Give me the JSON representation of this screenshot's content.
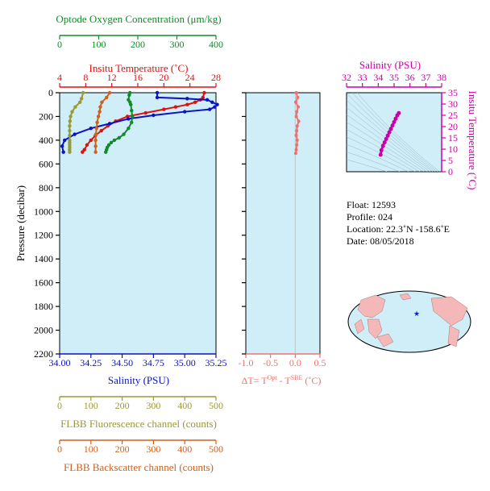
{
  "colors": {
    "oxygen": "#118a2a",
    "temperature": "#e01010",
    "salinity": "#0a12c8",
    "fluorescence": "#9a9a34",
    "backscatter": "#d0601c",
    "delta": "#f07070",
    "ts": "#cc00aa",
    "plot_bg": "#cfeef8",
    "axis": "#000000"
  },
  "axes": {
    "oxygen": {
      "title": "Optode Oxygen Concentration (μm/kg)",
      "ticks": [
        "0",
        "100",
        "200",
        "300",
        "400"
      ],
      "range": [
        0,
        400
      ]
    },
    "temperature": {
      "title": "Insitu Temperature (˚C)",
      "ticks": [
        "4",
        "8",
        "12",
        "16",
        "20",
        "24",
        "28"
      ],
      "range": [
        4,
        28
      ]
    },
    "pressure": {
      "title": "Pressure (decibar)",
      "ticks": [
        "0",
        "200",
        "400",
        "600",
        "800",
        "1000",
        "1200",
        "1400",
        "1600",
        "1800",
        "2000",
        "2200"
      ],
      "range": [
        0,
        2200
      ]
    },
    "salinity": {
      "title": "Salinity (PSU)",
      "ticks": [
        "34.00",
        "34.25",
        "34.50",
        "34.75",
        "35.00",
        "35.25"
      ],
      "range": [
        34.0,
        35.25
      ]
    },
    "delta_t": {
      "title_prefix": "ΔT= T",
      "sup1": "Opt",
      "mid": " - T",
      "sup2": "SBE",
      "suffix": " (˚C)",
      "ticks": [
        "-1.0",
        "-0.5",
        "0.0",
        "0.5"
      ],
      "range": [
        -1.0,
        0.5
      ]
    },
    "fluorescence": {
      "title": "FLBB Fluorescence channel (counts)",
      "ticks": [
        "0",
        "100",
        "200",
        "300",
        "400",
        "500"
      ],
      "range": [
        0,
        500
      ]
    },
    "backscatter": {
      "title": "FLBB Backscatter channel (counts)",
      "ticks": [
        "0",
        "100",
        "200",
        "300",
        "400",
        "500"
      ],
      "range": [
        0,
        500
      ]
    },
    "ts_salinity": {
      "title": "Salinity (PSU)",
      "ticks": [
        "32",
        "33",
        "34",
        "35",
        "36",
        "37",
        "38"
      ],
      "range": [
        32,
        38
      ]
    },
    "ts_temperature": {
      "title": "Insitu Temperature (˚C)",
      "ticks": [
        "0",
        "5",
        "10",
        "15",
        "20",
        "25",
        "30",
        "35"
      ],
      "range": [
        0,
        35
      ]
    }
  },
  "info": {
    "float": "Float:  12593",
    "profile": "Profile:  024",
    "location": "Location:  22.3˚N  -158.6˚E",
    "date": "Date:  08/05/2018"
  },
  "chart_data": [
    {
      "type": "line",
      "name": "profile",
      "y_axis": "Pressure (decibar)",
      "series": [
        {
          "name": "Insitu Temperature",
          "axis": "temperature",
          "x": [
            26.2,
            26.0,
            25.6,
            24.8,
            23.6,
            21.8,
            20.0,
            17.2,
            14.4,
            12.6,
            11.4,
            10.4,
            9.5,
            8.8,
            8.2,
            7.8,
            7.5
          ],
          "pressure": [
            0,
            40,
            60,
            80,
            100,
            120,
            140,
            170,
            200,
            240,
            280,
            320,
            360,
            400,
            440,
            480,
            500
          ]
        },
        {
          "name": "Salinity",
          "axis": "salinity",
          "x": [
            34.78,
            34.78,
            35.02,
            35.18,
            35.22,
            35.26,
            35.24,
            35.2,
            35.0,
            34.75,
            34.55,
            34.4,
            34.25,
            34.12,
            34.04,
            34.02,
            34.03
          ],
          "pressure": [
            0,
            40,
            50,
            60,
            80,
            100,
            120,
            140,
            160,
            190,
            220,
            260,
            300,
            350,
            400,
            450,
            500
          ]
        },
        {
          "name": "Optode Oxygen Concentration",
          "axis": "oxygen",
          "x": [
            180,
            178,
            176,
            180,
            182,
            184,
            186,
            184,
            176,
            164,
            152,
            140,
            132,
            126,
            122,
            120,
            118
          ],
          "pressure": [
            0,
            20,
            60,
            80,
            100,
            150,
            200,
            250,
            300,
            350,
            380,
            400,
            420,
            440,
            460,
            480,
            500
          ]
        },
        {
          "name": "FLBB Fluorescence channel",
          "axis": "fluorescence",
          "x": [
            75,
            70,
            65,
            50,
            40,
            35,
            33,
            32,
            32,
            32,
            32,
            32,
            32,
            32,
            32,
            32
          ],
          "pressure": [
            0,
            50,
            80,
            120,
            160,
            200,
            240,
            280,
            320,
            360,
            400,
            420,
            440,
            460,
            480,
            500
          ]
        },
        {
          "name": "FLBB Backscatter channel",
          "axis": "backscatter",
          "x": [
            160,
            150,
            135,
            130,
            128,
            124,
            120,
            118,
            116,
            115,
            115,
            115
          ],
          "pressure": [
            0,
            40,
            80,
            120,
            160,
            200,
            250,
            300,
            350,
            400,
            450,
            500
          ]
        }
      ]
    },
    {
      "type": "scatter",
      "name": "delta_t",
      "series": [
        {
          "name": "ΔT",
          "x": [
            0.02,
            0.05,
            0.01,
            0.06,
            0.03,
            0.02,
            0.07,
            0.04,
            0.03,
            0.02,
            0.04,
            0.03,
            0.02,
            0.01
          ],
          "pressure": [
            0,
            40,
            80,
            120,
            160,
            200,
            240,
            280,
            320,
            360,
            400,
            440,
            480,
            510
          ]
        }
      ]
    },
    {
      "type": "scatter",
      "name": "ts_diagram",
      "series": [
        {
          "name": "T-S",
          "salinity": [
            35.3,
            35.2,
            35.1,
            35.0,
            34.9,
            34.8,
            34.7,
            34.6,
            34.5,
            34.4,
            34.3,
            34.2,
            34.15
          ],
          "temperature": [
            26.0,
            25.0,
            23.5,
            22.0,
            20.5,
            19.0,
            17.5,
            16.0,
            14.5,
            13.0,
            11.5,
            9.5,
            7.5
          ]
        }
      ]
    }
  ]
}
